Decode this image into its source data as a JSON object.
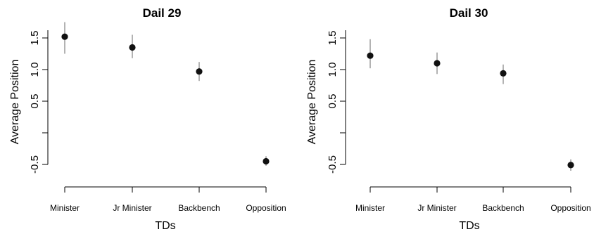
{
  "chart_data": [
    {
      "type": "scatter",
      "title": "Dail 29",
      "xlabel": "TDs",
      "ylabel": "Average Position",
      "categories": [
        "Minister",
        "Jr Minister",
        "Backbench",
        "Opposition"
      ],
      "yticks": [
        "-0.5",
        "0.5",
        "1.0",
        "1.5"
      ],
      "ylim": [
        -0.7,
        1.75
      ],
      "values": [
        1.52,
        1.35,
        0.97,
        -0.45
      ],
      "ci_low": [
        1.25,
        1.18,
        0.82,
        -0.52
      ],
      "ci_high": [
        1.75,
        1.55,
        1.12,
        -0.37
      ],
      "grid": false,
      "legend": "none"
    },
    {
      "type": "scatter",
      "title": "Dail 30",
      "xlabel": "TDs",
      "ylabel": "Average Position",
      "categories": [
        "Minister",
        "Jr Minister",
        "Backbench",
        "Opposition"
      ],
      "yticks": [
        "-0.5",
        "0.5",
        "1.0",
        "1.5"
      ],
      "ylim": [
        -0.7,
        1.75
      ],
      "values": [
        1.22,
        1.1,
        0.94,
        -0.51
      ],
      "ci_low": [
        1.02,
        0.93,
        0.77,
        -0.6
      ],
      "ci_high": [
        1.48,
        1.27,
        1.08,
        -0.42
      ],
      "grid": false,
      "legend": "none"
    }
  ]
}
